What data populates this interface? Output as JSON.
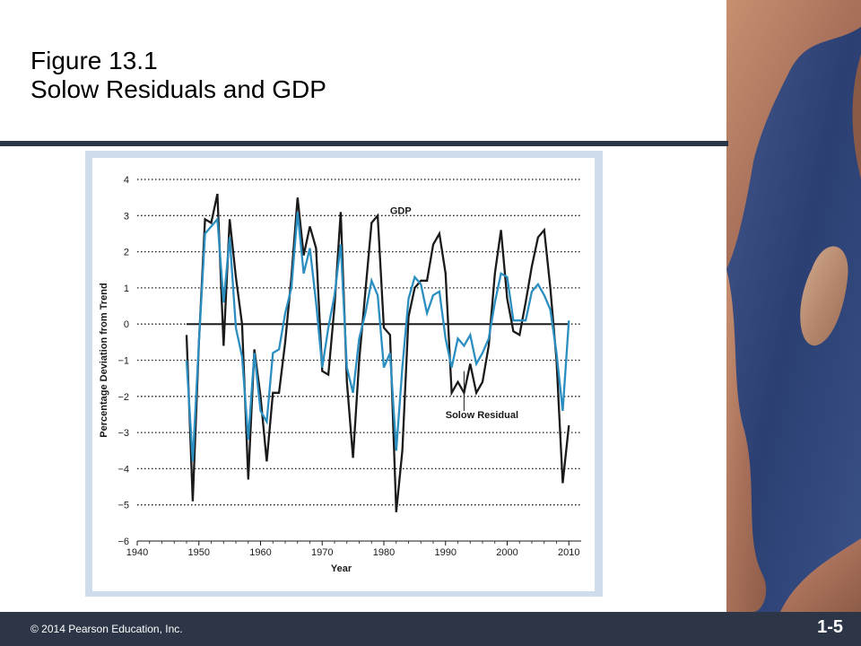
{
  "slide": {
    "title_line1": "Figure 13.1",
    "title_line2": "Solow Residuals and GDP",
    "copyright": "© 2014 Pearson Education, Inc.",
    "slide_number": "1-5"
  },
  "colors": {
    "bar": "#2c3646",
    "chart_frame": "#cfdcec",
    "gdp": "#1a1a1a",
    "solow": "#2a8ec0"
  },
  "chart_data": {
    "type": "line",
    "title": "",
    "xlabel": "Year",
    "ylabel": "Percentage Deviation from Trend",
    "xlim": [
      1940,
      2012
    ],
    "ylim": [
      -6,
      4
    ],
    "xticks": [
      "1940",
      "1950",
      "1960",
      "1970",
      "1980",
      "1990",
      "2000",
      "2010"
    ],
    "yticks": [
      "4",
      "3",
      "2",
      "1",
      "0",
      "−1",
      "−2",
      "−3",
      "−4",
      "−5",
      "−6"
    ],
    "grid": "horizontal dotted",
    "annotations": [
      "GDP",
      "Solow Residual"
    ],
    "x": [
      1948,
      1949,
      1950,
      1951,
      1952,
      1953,
      1954,
      1955,
      1956,
      1957,
      1958,
      1959,
      1960,
      1961,
      1962,
      1963,
      1964,
      1965,
      1966,
      1967,
      1968,
      1969,
      1970,
      1971,
      1972,
      1973,
      1974,
      1975,
      1976,
      1977,
      1978,
      1979,
      1980,
      1981,
      1982,
      1983,
      1984,
      1985,
      1986,
      1987,
      1988,
      1989,
      1990,
      1991,
      1992,
      1993,
      1994,
      1995,
      1996,
      1997,
      1998,
      1999,
      2000,
      2001,
      2002,
      2003,
      2004,
      2005,
      2006,
      2007,
      2008,
      2009,
      2010
    ],
    "series": [
      {
        "name": "GDP",
        "values": [
          -0.3,
          -4.9,
          -0.5,
          2.9,
          2.8,
          3.6,
          -0.6,
          2.9,
          1.3,
          0.0,
          -4.3,
          -0.7,
          -2.0,
          -3.8,
          -1.9,
          -1.9,
          -0.5,
          1.3,
          3.5,
          1.9,
          2.7,
          2.1,
          -1.3,
          -1.4,
          0.5,
          3.1,
          -1.6,
          -3.7,
          -1.0,
          0.9,
          2.8,
          3.0,
          -0.1,
          -0.3,
          -5.2,
          -3.5,
          0.2,
          1.0,
          1.2,
          1.2,
          2.2,
          2.5,
          1.4,
          -1.9,
          -1.6,
          -1.9,
          -1.1,
          -1.9,
          -1.6,
          -0.6,
          1.4,
          2.6,
          0.7,
          -0.2,
          -0.3,
          0.6,
          1.6,
          2.4,
          2.6,
          1.0,
          -1.0,
          -4.4,
          -2.8
        ]
      },
      {
        "name": "Solow Residual",
        "values": [
          -1.0,
          -3.8,
          -0.5,
          2.5,
          2.7,
          2.9,
          0.6,
          2.4,
          -0.1,
          -0.9,
          -3.2,
          -0.8,
          -2.4,
          -2.7,
          -0.8,
          -0.7,
          0.3,
          1.0,
          3.1,
          1.4,
          2.1,
          0.6,
          -1.2,
          -0.1,
          0.8,
          2.2,
          -1.2,
          -1.9,
          -0.4,
          0.3,
          1.2,
          0.8,
          -1.2,
          -0.8,
          -3.5,
          -1.2,
          0.7,
          1.3,
          1.1,
          0.3,
          0.8,
          0.9,
          -0.4,
          -1.2,
          -0.4,
          -0.6,
          -0.3,
          -1.1,
          -0.8,
          -0.4,
          0.6,
          1.4,
          1.3,
          0.1,
          0.1,
          0.1,
          0.9,
          1.1,
          0.8,
          0.4,
          -0.8,
          -2.4,
          0.1
        ]
      }
    ]
  }
}
